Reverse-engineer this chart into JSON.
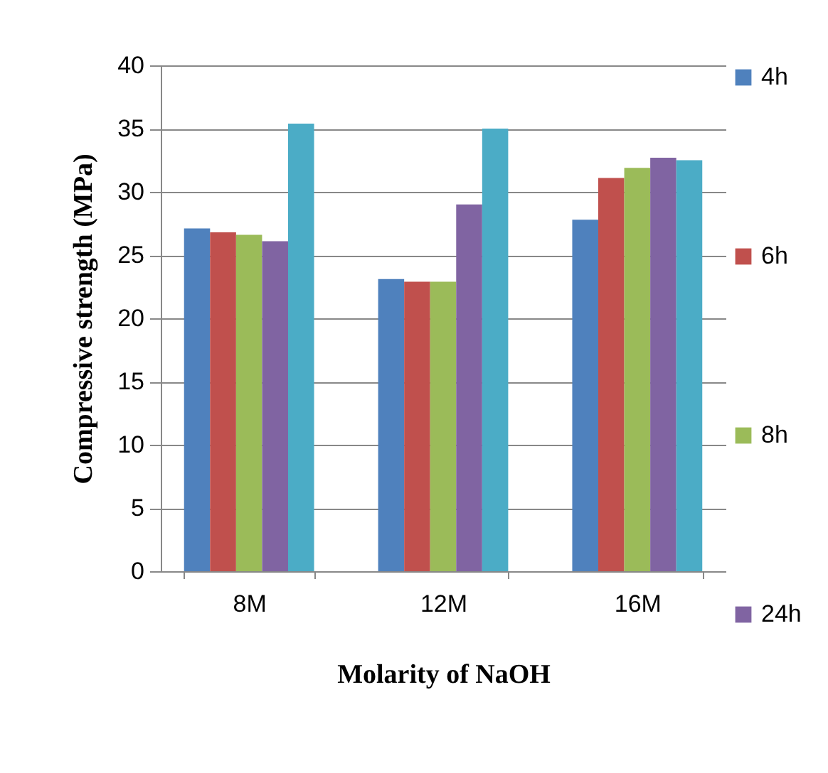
{
  "chart_data": {
    "type": "bar",
    "xlabel": "Molarity of NaOH",
    "ylabel": "Compressive strength (MPa)",
    "categories": [
      "8M",
      "12M",
      "16M"
    ],
    "series": [
      {
        "name": "4h",
        "color": "#4f81bd",
        "values": [
          27.1,
          23.1,
          27.8
        ]
      },
      {
        "name": "6h",
        "color": "#c0504d",
        "values": [
          26.8,
          22.9,
          31.1
        ]
      },
      {
        "name": "8h",
        "color": "#9bbb59",
        "values": [
          26.6,
          22.9,
          31.9
        ]
      },
      {
        "name": "24h",
        "color": "#8064a2",
        "values": [
          26.1,
          29.0,
          32.7
        ]
      },
      {
        "color": "#4bacc6",
        "values": [
          35.4,
          35.0,
          32.5
        ]
      }
    ],
    "ylim": [
      0,
      40
    ],
    "yticks": [
      0,
      5,
      10,
      15,
      20,
      25,
      30,
      35,
      40
    ],
    "grid": "y",
    "legend": "right"
  }
}
